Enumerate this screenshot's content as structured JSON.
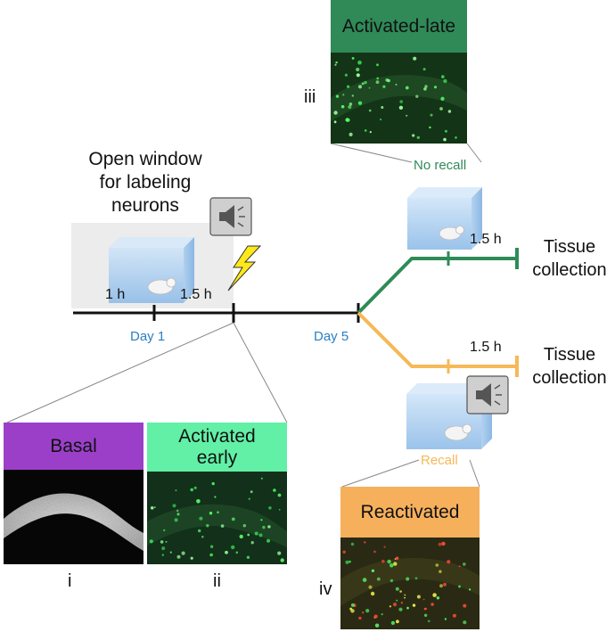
{
  "labeling_window": {
    "line1": "Open window",
    "line2": "for labeling",
    "line3": "neurons"
  },
  "timeline": {
    "tick_1h": "1 h",
    "tick_1_5h": "1.5 h",
    "day1": "Day 1",
    "day5": "Day 5"
  },
  "branches": {
    "no_recall": {
      "label": "No recall",
      "duration": "1.5 h",
      "end_line1": "Tissue",
      "end_line2": "collection"
    },
    "recall": {
      "label": "Recall",
      "duration": "1.5 h",
      "end_line1": "Tissue",
      "end_line2": "collection"
    }
  },
  "panels": {
    "basal": {
      "header": "Basal",
      "numeral": "i"
    },
    "activated_early": {
      "header_line1": "Activated",
      "header_line2": "early",
      "numeral": "ii"
    },
    "activated_late": {
      "header": "Activated-late",
      "numeral": "iii"
    },
    "reactivated": {
      "header": "Reactivated",
      "numeral": "iv"
    }
  },
  "colors": {
    "no_recall": "#2e8b57",
    "recall": "#f6b858",
    "day_text": "#2a7fc1",
    "basal_header": "#9b3fc9",
    "early_header": "#62f0a6",
    "late_header": "#2f8a58",
    "reactivated_header": "#f6b05c",
    "lightning": "#ffe81a",
    "cage": "#a8cdf0"
  },
  "icons": [
    "speaker-icon",
    "lightning-icon",
    "mouse-cage-icon"
  ]
}
